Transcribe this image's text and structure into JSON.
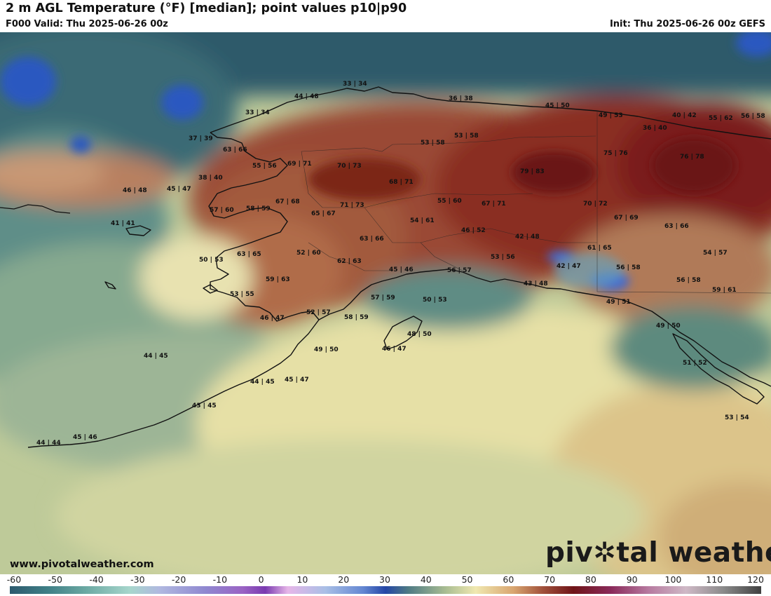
{
  "header": {
    "title": "2 m AGL Temperature (°F) [median]; point values p10|p90",
    "valid": "F000 Valid: Thu 2025-06-26 00z",
    "init": "Init: Thu 2025-06-26 00z GEFS"
  },
  "footer": {
    "site": "www.pivotalweather.com",
    "logo_pre": "piv",
    "logo_post": "tal weather"
  },
  "colorbar": {
    "ticks": [
      "-60",
      "-50",
      "-40",
      "-30",
      "-20",
      "-10",
      "0",
      "10",
      "20",
      "30",
      "40",
      "50",
      "60",
      "70",
      "80",
      "90",
      "100",
      "110",
      "120"
    ]
  },
  "point_values": [
    "33 | 34",
    "44 | 48",
    "36 | 38",
    "45 | 50",
    "49 | 53",
    "40 | 42",
    "55 | 62",
    "56 | 58",
    "33 | 34",
    "36 | 40",
    "37 | 39",
    "53 | 58",
    "53 | 58",
    "63 | 66",
    "75 | 76",
    "76 | 78",
    "55 | 56",
    "69 | 71",
    "70 | 73",
    "79 | 83",
    "38 | 40",
    "68 | 71",
    "46 | 48",
    "45 | 47",
    "67 | 68",
    "55 | 60",
    "67 | 71",
    "70 | 72",
    "57 | 60",
    "58 | 59",
    "71 | 73",
    "65 | 67",
    "54 | 61",
    "67 | 69",
    "63 | 66",
    "41 | 41",
    "46 | 52",
    "42 | 48",
    "63 | 66",
    "61 | 65",
    "54 | 57",
    "63 | 65",
    "52 | 60",
    "50 | 53",
    "62 | 63",
    "53 | 56",
    "42 | 47",
    "45 | 46",
    "56 | 57",
    "56 | 58",
    "59 | 63",
    "43 | 48",
    "56 | 58",
    "59 | 61",
    "53 | 55",
    "57 | 59",
    "50 | 53",
    "49 | 51",
    "52 | 57",
    "46 | 47",
    "58 | 59",
    "49 | 50",
    "48 | 50",
    "46 | 47",
    "49 | 50",
    "51 | 52",
    "44 | 45",
    "44 | 45",
    "45 | 47",
    "43 | 45",
    "45 | 46",
    "44 | 44",
    "53 | 54"
  ]
}
